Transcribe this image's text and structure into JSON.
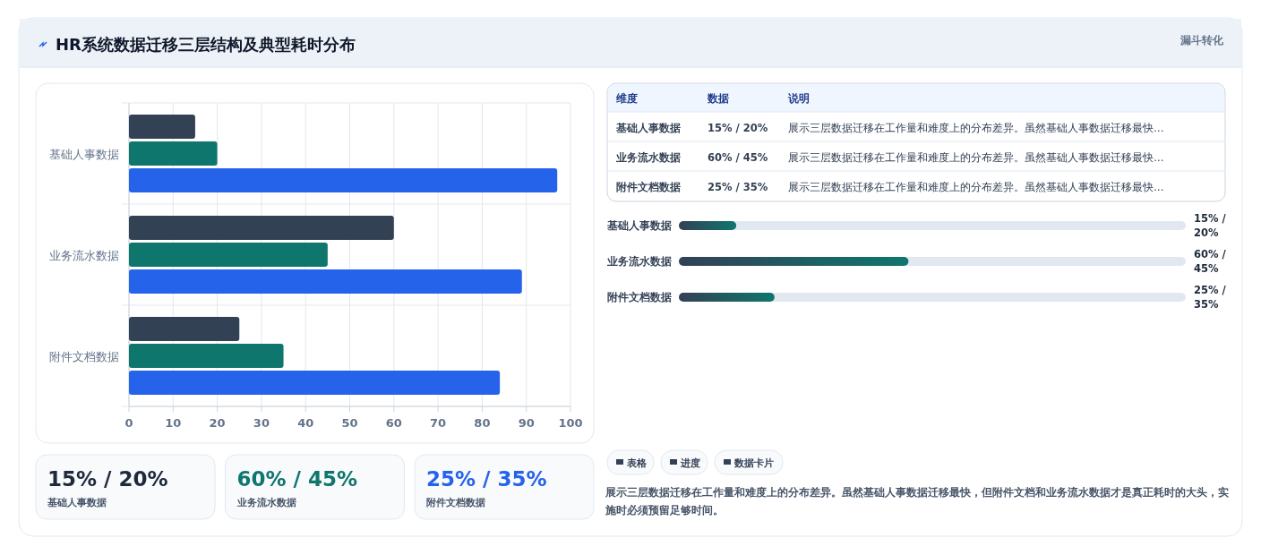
{
  "chart_data": [
    {
      "type": "bar",
      "title": "HR系统数据迁移三层结构及典型耗时分布",
      "orientation": "horizontal",
      "categories": [
        "基础人事数据",
        "业务流水数据",
        "附件文档数据"
      ],
      "series": [
        {
          "color": "#334155",
          "values": [
            15,
            60,
            25
          ]
        },
        {
          "color": "#0f766e",
          "values": [
            20,
            45,
            35
          ]
        },
        {
          "color": "#2563eb",
          "values": [
            97,
            89,
            84
          ]
        }
      ],
      "xlim": [
        0,
        100
      ],
      "xticks": [
        0,
        10,
        20,
        30,
        40,
        50,
        60,
        70,
        80,
        90,
        100
      ],
      "grid": true
    },
    {
      "type": "other",
      "title": "漏斗转化",
      "annotations": [
        "维度",
        "数据",
        "说明",
        "基础人事数据",
        "15% / 20%",
        "展示三层数据迁移在工作量和难度上的分布差异。虽然基础人事数据迁移最快…",
        "业务流水数据",
        "60% / 45%",
        "展示三层数据迁移在工作量和难度上的分布差异。虽然基础人事数据迁移最快…",
        "附件文档数据",
        "25% / 35%",
        "展示三层数据迁移在工作量和难度上的分布差异。虽然基础人事数据迁移最快…"
      ]
    },
    {
      "type": "bar",
      "orientation": "horizontal",
      "categories": [
        "基础人事数据",
        "业务流水数据",
        "附件文档数据"
      ],
      "values": [
        15,
        60,
        25
      ],
      "color": "#0f766e",
      "value_labels": [
        "15% / 20%",
        "60% / 45%",
        "25% / 35%"
      ]
    },
    {
      "type": "other",
      "annotations": [
        "15% / 20%",
        "基础人事数据",
        "60% / 45%",
        "业务流水数据",
        "25% / 35%",
        "附件文档数据"
      ],
      "colors": [
        "#1e293b",
        "#0f766e",
        "#2563eb"
      ]
    },
    {
      "type": "other",
      "annotations": [
        "表格",
        "进度",
        "数据卡片",
        "展示三层数据迁移在工作量和难度上的分布差异。虽然基础人事数据迁移最快，但附件文档和业务流水数据才是真正耗时的大头，实施时必须预留足够时间。"
      ]
    }
  ]
}
